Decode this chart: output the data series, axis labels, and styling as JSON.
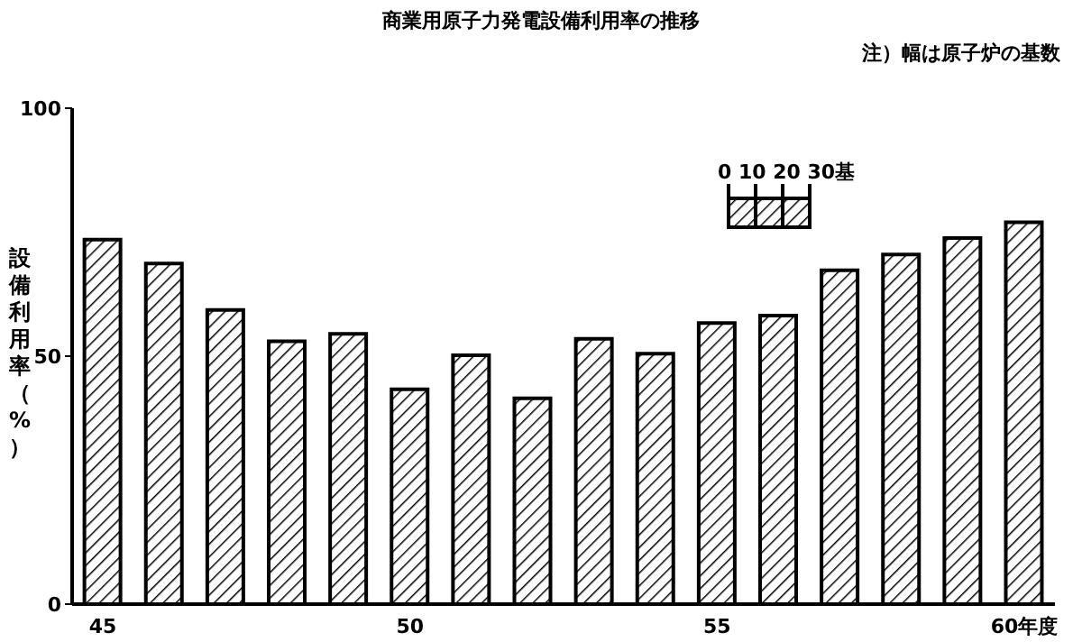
{
  "chart_data": {
    "type": "bar",
    "title": "商業用原子力発電設備利用率の推移",
    "ylabel": "設備利用率（%）",
    "annotations": [
      "注）幅は原子炉の基数",
      "0 10 20 30基"
    ],
    "categories": [
      "45",
      null,
      null,
      null,
      null,
      "50",
      null,
      null,
      null,
      null,
      "55",
      null,
      null,
      null,
      null,
      "60年度"
    ],
    "values": [
      73.5,
      68.7,
      59.3,
      53,
      54.5,
      43.3,
      50.2,
      41.5,
      53.5,
      50.5,
      56.7,
      58.2,
      67.3,
      70.5,
      73.8,
      77
    ],
    "color": "#000000",
    "ylim": [
      0,
      100
    ],
    "yticks": [
      0,
      50,
      100
    ],
    "grid": false,
    "legend": false
  }
}
